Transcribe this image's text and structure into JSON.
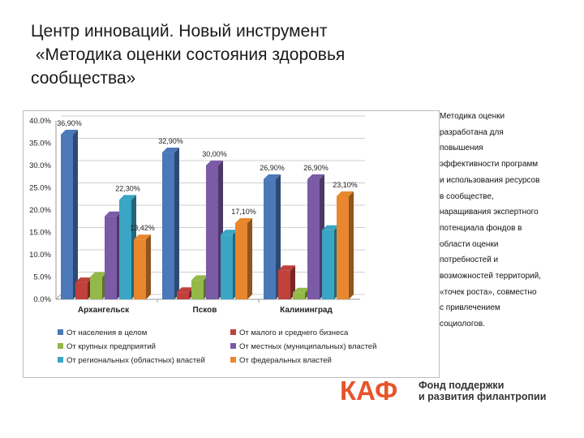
{
  "title_lines": [
    "Центр инноваций. Новый инструмент",
    " «Методика оценки состояния здоровья",
    "сообщества»"
  ],
  "side_text_lines": [
    "Методика оценки",
    "разработана для",
    "повышения",
    "эффективности программ",
    "и использования ресурсов",
    "в сообществе,",
    "наращивания экспертного",
    "потенциала фондов в",
    "области оценки",
    "потребностей и",
    "возможностей территорий,",
    "«точек роста», совместно",
    "с привлечением",
    "социологов."
  ],
  "logo": {
    "text": "КАФ",
    "fund_lines": [
      "Фонд поддержки",
      "и развития филантропии"
    ],
    "color": "#e8542b"
  },
  "chart_data": {
    "type": "bar",
    "categories": [
      "Архангельск",
      "Псков",
      "Калининград"
    ],
    "ylim": [
      0,
      40
    ],
    "yticks": [
      "0.0%",
      "5.0%",
      "10.0%",
      "15.0%",
      "20.0%",
      "25.0%",
      "30.0%",
      "35.0%",
      "40.0%"
    ],
    "grid": true,
    "legend_position": "bottom",
    "series": [
      {
        "name": "От населения в целом",
        "color": "#4a78b8",
        "values": [
          36.9,
          32.9,
          26.9
        ],
        "labels": [
          "36,90%",
          "32,90%",
          "26,90%"
        ]
      },
      {
        "name": "От малого и среднего бизнеса",
        "color": "#c0413b",
        "values": [
          3.8,
          1.6,
          6.5
        ],
        "labels": [
          "",
          "",
          ""
        ]
      },
      {
        "name": "От крупных предприятий",
        "color": "#94b84a",
        "values": [
          5.0,
          4.3,
          1.5
        ],
        "labels": [
          "",
          "",
          ""
        ]
      },
      {
        "name": "От местных (муниципальных) властей",
        "color": "#7b5aa6",
        "values": [
          18.6,
          30.0,
          26.9
        ],
        "labels": [
          "",
          "30,00%",
          "26,90%"
        ]
      },
      {
        "name": "От региональных (областных) властей",
        "color": "#3aa5c4",
        "values": [
          22.3,
          14.5,
          15.5
        ],
        "labels": [
          "22,30%",
          "",
          ""
        ]
      },
      {
        "name": "От федеральных властей",
        "color": "#e8872e",
        "values": [
          13.42,
          17.1,
          23.1
        ],
        "labels": [
          "13,42%",
          "17,10%",
          "23,10%"
        ]
      }
    ]
  }
}
